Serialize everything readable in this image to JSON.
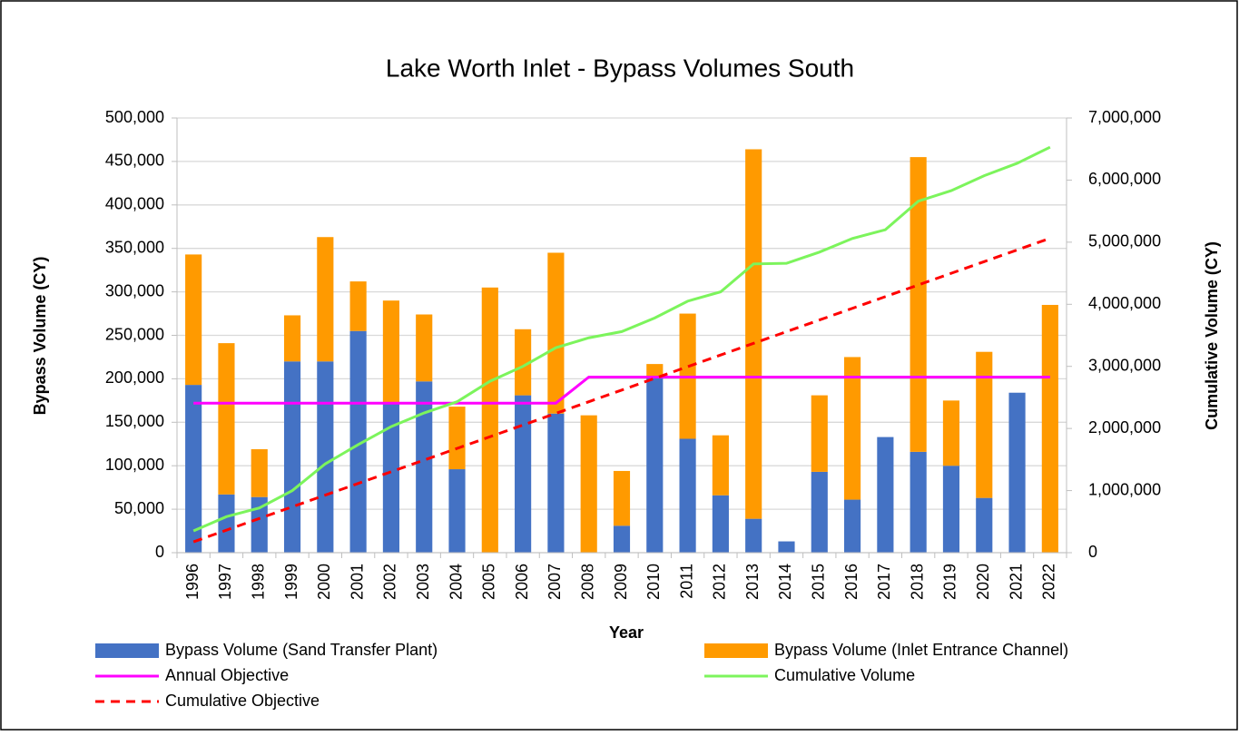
{
  "chart_data": {
    "type": "bar",
    "title": "Lake Worth Inlet - Bypass Volumes South",
    "x_label": "Year",
    "y_label": "Bypass Volume (CY)",
    "y2_label": "Cumulative Volume (CY)",
    "categories": [
      "1996",
      "1997",
      "1998",
      "1999",
      "2000",
      "2001",
      "2002",
      "2003",
      "2004",
      "2005",
      "2006",
      "2007",
      "2008",
      "2009",
      "2010",
      "2011",
      "2012",
      "2013",
      "2014",
      "2015",
      "2016",
      "2017",
      "2018",
      "2019",
      "2020",
      "2021",
      "2022"
    ],
    "stacked": true,
    "grid": true,
    "legend": "bottom",
    "ylim": [
      0,
      500000
    ],
    "yticks": [
      0,
      {
        "value": 50000,
        "label": "50,000"
      },
      {
        "value": 100000,
        "label": "100,000"
      },
      {
        "value": 150000,
        "label": "150,000"
      },
      {
        "value": 200000,
        "label": "200,000"
      },
      {
        "value": 250000,
        "label": "250,000"
      },
      {
        "value": 300000,
        "label": "300,000"
      },
      {
        "value": 350000,
        "label": "350,000"
      },
      {
        "value": 400000,
        "label": "400,000"
      },
      {
        "value": 450000,
        "label": "450,000"
      },
      {
        "value": 500000,
        "label": "500,000"
      }
    ],
    "y2lim": [
      0,
      7000000
    ],
    "y2ticks": [
      0,
      {
        "value": 1000000,
        "label": "1,000,000"
      },
      {
        "value": 2000000,
        "label": "2,000,000"
      },
      {
        "value": 3000000,
        "label": "3,000,000"
      },
      {
        "value": 4000000,
        "label": "4,000,000"
      },
      {
        "value": 5000000,
        "label": "5,000,000"
      },
      {
        "value": 6000000,
        "label": "6,000,000"
      },
      {
        "value": 7000000,
        "label": "7,000,000"
      }
    ],
    "series": [
      {
        "name": "Bypass Volume (Sand Transfer Plant)",
        "type": "bar",
        "color": "#4472c4",
        "values": [
          193000,
          67000,
          64000,
          220000,
          220000,
          255000,
          172000,
          197000,
          96000,
          0,
          181000,
          160000,
          0,
          31000,
          203000,
          131000,
          66000,
          39000,
          13000,
          93000,
          61000,
          133000,
          116000,
          100000,
          63000,
          184000,
          0
        ]
      },
      {
        "name": "Bypass Volume (Inlet Entrance Channel)",
        "type": "bar",
        "color": "#ff9a00",
        "values": [
          150000,
          174000,
          55000,
          53000,
          143000,
          57000,
          118000,
          77000,
          72000,
          305000,
          76000,
          185000,
          158000,
          63000,
          14000,
          144000,
          69000,
          425000,
          0,
          88000,
          164000,
          0,
          339000,
          75000,
          168000,
          0,
          285000
        ]
      },
      {
        "name": "Annual Objective",
        "type": "line",
        "color": "#ff00ff",
        "values": [
          172000,
          172000,
          172000,
          172000,
          172000,
          172000,
          172000,
          172000,
          172000,
          172000,
          172000,
          172000,
          202000,
          202000,
          202000,
          202000,
          202000,
          202000,
          202000,
          202000,
          202000,
          202000,
          202000,
          202000,
          202000,
          202000,
          202000
        ]
      },
      {
        "name": "Cumulative Volume",
        "type": "line",
        "color": "#7cf45c",
        "axis": "y2",
        "values": [
          350000,
          580000,
          720000,
          1000000,
          1430000,
          1740000,
          2030000,
          2250000,
          2430000,
          2760000,
          3000000,
          3300000,
          3460000,
          3560000,
          3780000,
          4050000,
          4200000,
          4650000,
          4660000,
          4840000,
          5060000,
          5200000,
          5660000,
          5830000,
          6070000,
          6270000,
          6530000
        ]
      },
      {
        "name": "Cumulative Objective",
        "type": "line",
        "color": "#ff0000",
        "axis": "y2",
        "dashed": true,
        "values": [
          175000,
          363000,
          551000,
          739000,
          927000,
          1115000,
          1303000,
          1491000,
          1679000,
          1867000,
          2055000,
          2243000,
          2431000,
          2619000,
          2807000,
          2995000,
          3183000,
          3371000,
          3559000,
          3747000,
          3935000,
          4123000,
          4311000,
          4499000,
          4687000,
          4875000,
          5063000
        ]
      }
    ]
  }
}
